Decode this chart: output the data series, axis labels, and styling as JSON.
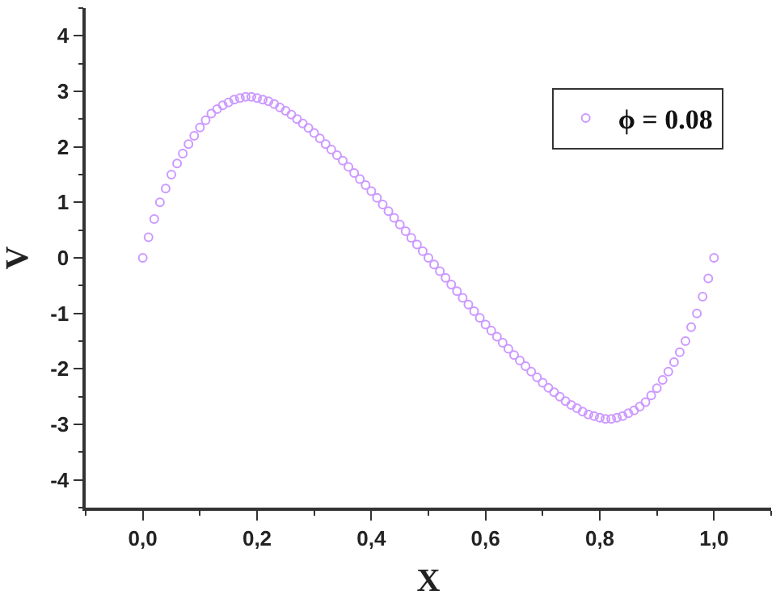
{
  "chart_data": {
    "type": "scatter",
    "xlabel": "X",
    "ylabel": "V",
    "xlim": [
      -0.1,
      1.1
    ],
    "ylim": [
      -4.5,
      4.5
    ],
    "xticks": [
      {
        "value": 0,
        "label": "0,0"
      },
      {
        "value": 0.2,
        "label": "0,2"
      },
      {
        "value": 0.4,
        "label": "0,4"
      },
      {
        "value": 0.6,
        "label": "0,6"
      },
      {
        "value": 0.8,
        "label": "0,8"
      },
      {
        "value": 1.0,
        "label": "1,0"
      }
    ],
    "yticks": [
      -4,
      -3,
      -2,
      -1,
      0,
      1,
      2,
      3,
      4
    ],
    "grid": false,
    "legend": "top right",
    "marker": "circle",
    "x": [
      0,
      0.01,
      0.02,
      0.03,
      0.04,
      0.05,
      0.06,
      0.07,
      0.08,
      0.09,
      0.1,
      0.11,
      0.12,
      0.13,
      0.14,
      0.15,
      0.16,
      0.17,
      0.18,
      0.19,
      0.2,
      0.21,
      0.22,
      0.23,
      0.24,
      0.25,
      0.26,
      0.27,
      0.28,
      0.29,
      0.3,
      0.31,
      0.32,
      0.33,
      0.34,
      0.35,
      0.36,
      0.37,
      0.38,
      0.39,
      0.4,
      0.41,
      0.42,
      0.43,
      0.44,
      0.45,
      0.46,
      0.47,
      0.48,
      0.49,
      0.5,
      0.51,
      0.52,
      0.53,
      0.54,
      0.55,
      0.56,
      0.57,
      0.58,
      0.59,
      0.6,
      0.61,
      0.62,
      0.63,
      0.64,
      0.65,
      0.66,
      0.67,
      0.68,
      0.69,
      0.7,
      0.71,
      0.72,
      0.73,
      0.74,
      0.75,
      0.76,
      0.77,
      0.78,
      0.79,
      0.8,
      0.81,
      0.82,
      0.83,
      0.84,
      0.85,
      0.86,
      0.87,
      0.88,
      0.89,
      0.9,
      0.91,
      0.92,
      0.93,
      0.94,
      0.95,
      0.96,
      0.97,
      0.98,
      0.99,
      1.0
    ],
    "series": [
      {
        "name": "ϕ = 0.08",
        "color": "#cc99ff",
        "values": [
          0,
          0.37,
          0.7,
          1.0,
          1.25,
          1.5,
          1.7,
          1.88,
          2.05,
          2.2,
          2.35,
          2.48,
          2.6,
          2.68,
          2.75,
          2.8,
          2.85,
          2.88,
          2.9,
          2.9,
          2.88,
          2.85,
          2.82,
          2.77,
          2.71,
          2.65,
          2.58,
          2.5,
          2.42,
          2.34,
          2.25,
          2.15,
          2.05,
          1.95,
          1.85,
          1.75,
          1.64,
          1.53,
          1.42,
          1.31,
          1.2,
          1.08,
          0.96,
          0.84,
          0.72,
          0.6,
          0.48,
          0.36,
          0.24,
          0.12,
          0,
          -0.12,
          -0.24,
          -0.36,
          -0.48,
          -0.6,
          -0.72,
          -0.84,
          -0.96,
          -1.08,
          -1.2,
          -1.31,
          -1.42,
          -1.53,
          -1.64,
          -1.75,
          -1.85,
          -1.95,
          -2.05,
          -2.15,
          -2.25,
          -2.34,
          -2.42,
          -2.5,
          -2.58,
          -2.65,
          -2.71,
          -2.77,
          -2.82,
          -2.85,
          -2.88,
          -2.9,
          -2.9,
          -2.88,
          -2.85,
          -2.8,
          -2.75,
          -2.68,
          -2.6,
          -2.48,
          -2.35,
          -2.2,
          -2.05,
          -1.88,
          -1.7,
          -1.5,
          -1.25,
          -1.0,
          -0.7,
          -0.37,
          0
        ]
      }
    ]
  }
}
